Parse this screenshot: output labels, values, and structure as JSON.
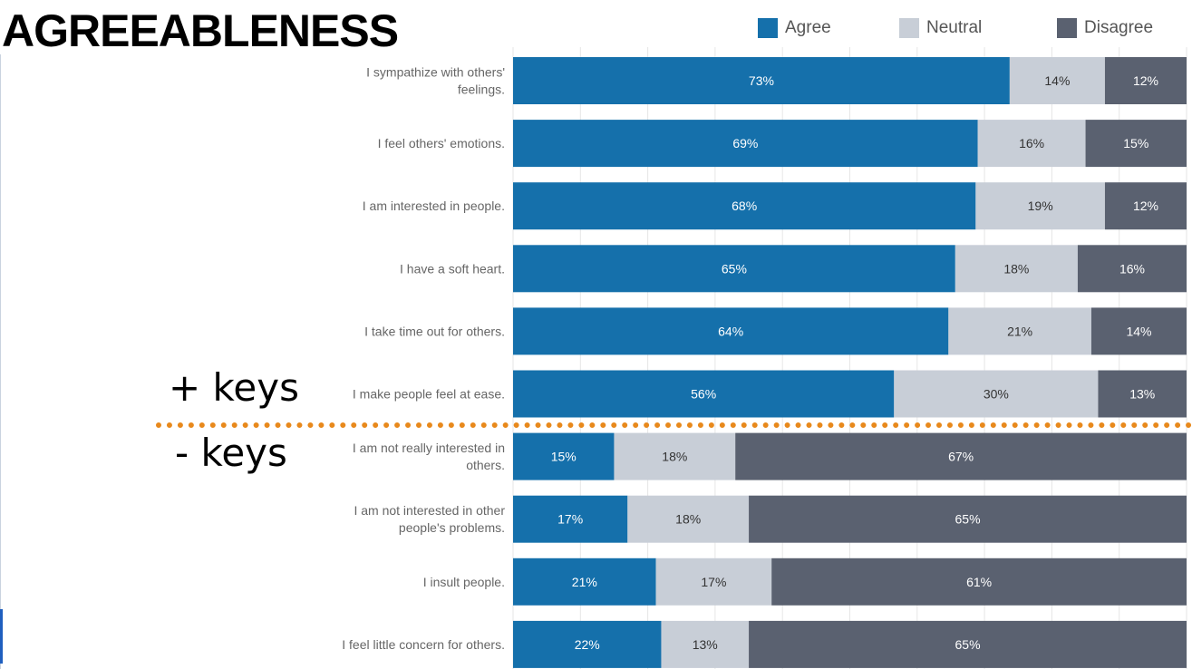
{
  "page": {
    "title": "AGREEABLENESS",
    "plus_keys_label": "+ keys",
    "minus_keys_label": "- keys"
  },
  "colors": {
    "agree": "#1570ab",
    "neutral": "#c8ced7",
    "disagree": "#5a6170",
    "divider": "#e8891c"
  },
  "legend": [
    {
      "label": "Agree",
      "color": "#1570ab"
    },
    {
      "label": "Neutral",
      "color": "#c8ced7"
    },
    {
      "label": "Disagree",
      "color": "#5a6170"
    }
  ],
  "chart_data": {
    "type": "bar",
    "orientation": "horizontal",
    "stacked": true,
    "title": "AGREEABLENESS",
    "categories": [
      [
        "I sympathize with others'",
        "feelings."
      ],
      [
        "I feel others' emotions."
      ],
      [
        "I am interested in people."
      ],
      [
        "I have a soft heart."
      ],
      [
        "I take time out for others."
      ],
      [
        "I make people feel at ease."
      ],
      [
        "I am not really interested in",
        "others."
      ],
      [
        "I am not interested in other",
        "people's problems."
      ],
      [
        "I insult people."
      ],
      [
        "I feel little concern for others."
      ]
    ],
    "series": [
      {
        "name": "Agree",
        "values": [
          73,
          69,
          68,
          65,
          64,
          56,
          15,
          17,
          21,
          22
        ]
      },
      {
        "name": "Neutral",
        "values": [
          14,
          16,
          19,
          18,
          21,
          30,
          18,
          18,
          17,
          13
        ]
      },
      {
        "name": "Disagree",
        "values": [
          12,
          15,
          12,
          16,
          14,
          13,
          67,
          65,
          61,
          65
        ]
      }
    ],
    "value_suffix": "%",
    "legend_position": "top-right",
    "grid": true,
    "groups": [
      {
        "label": "+ keys",
        "items": [
          0,
          1,
          2,
          3,
          4,
          5
        ]
      },
      {
        "label": "- keys",
        "items": [
          6,
          7,
          8,
          9
        ]
      }
    ]
  }
}
